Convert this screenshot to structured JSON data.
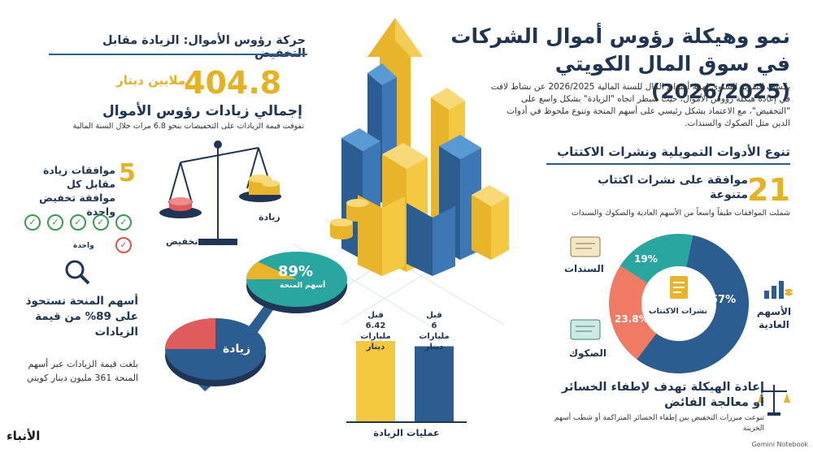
{
  "title": "نمو وهيكلة رؤوس أموال الشركات في سوق المال الكويتي (2026/2025)",
  "intro": "يكشف التقرير السنوي لهيئة أسواق المال للسنة المالية 2026/2025 عن نشاط لافت في إعادة هيكلة رؤوس الأموال، حيث سيطر اتجاه \"الزيادة\" بشكل واسع على \"التخفيض\"، مع الاعتماد بشكل رئيسي على أسهم المنحة وتنوع ملحوظ في أدوات الدين مثل الصكوك والسندات.",
  "tools_section": {
    "title": "تنوع الأدوات التمويلية ونشرات الاكتتاب",
    "count": "21",
    "count_label": "موافقة على نشرات اكتتاب متنوعة",
    "sub": "شملت الموافقات طيفاً واسعاً من الأسهم العادية والصكوك والسندات",
    "donut_center": "نشرات الاكتتاب",
    "donut": [
      {
        "label": "الأسهم العادية",
        "pct": "57%",
        "value": 57,
        "color": "#2c5d91"
      },
      {
        "label": "الصكوك",
        "pct": "23.8%",
        "value": 23.8,
        "color": "#f07a63"
      },
      {
        "label": "السندات",
        "pct": "19%",
        "value": 19,
        "color": "#2aa6a0"
      }
    ]
  },
  "restructure": {
    "title": "إعادة الهيكلة تهدف لإطفاء الخسائر أو معالجة الفائض",
    "sub": "تنوعت مبررات التخفيض بين إطفاء الخسائر المتراكمة أو شطب أسهم الخزينة"
  },
  "capital_section": {
    "heading": "حركة رؤوس الأموال: الزيادة مقابل التخفيض",
    "amount": "404.8",
    "amount_unit": "ملايين دينار",
    "amount_label": "إجمالي زيادات رؤوس الأموال",
    "amount_sub": "تفوقت قيمة الزيادات على التخفيضات بنحو 6.8 مرات خلال السنة المالية",
    "approvals_count": "5",
    "approvals_text": "موافقات زيادة مقابل كل موافقة تخفيض واحدة",
    "one_label": "واحدة",
    "scale_increase": "زيادة",
    "scale_decrease": "تخفيض"
  },
  "bonus": {
    "title": "أسهم المنحة تستحوذ على 89% من قيمة الزيادات",
    "sub": "بلغت قيمة الزيادات عبر أسهم المنحة 361 مليون دينار كويتي",
    "pie_pct": "89%",
    "pie_pct_value": 89,
    "pie_pct_label": "أسهم المنحة",
    "pie_rest_label": "زيادة"
  },
  "ops_chart": {
    "label": "عمليات الزيادة",
    "bars": [
      {
        "top": "قبل",
        "value_text": "6.42",
        "unit": "مليارات دينار",
        "value": 6.42,
        "color": "#f5c842"
      },
      {
        "top": "قبل",
        "value_text": "6",
        "unit": "مليارات دينار",
        "value": 6,
        "color": "#2c5d91"
      }
    ]
  },
  "logo": "الأنباء",
  "credit": "Gemini Notebook",
  "colors": {
    "navy": "#1f3553",
    "gold": "#e6b225",
    "blue": "#2c5d91",
    "teal": "#2aa6a0",
    "coral": "#f07a63"
  }
}
